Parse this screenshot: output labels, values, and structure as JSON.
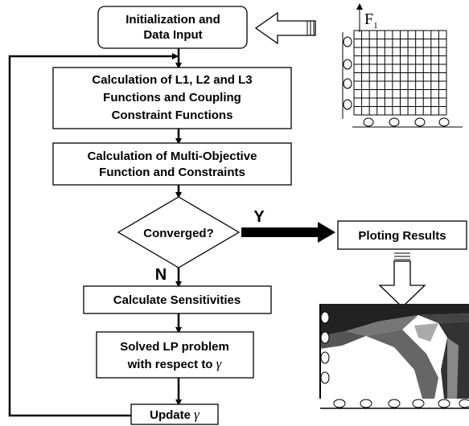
{
  "nodes": [
    {
      "lines": [
        "Initialization and",
        "Data Input"
      ]
    },
    {
      "lines": [
        "Calculation of L1, L2 and L3",
        "Functions and Coupling",
        "Constraint Functions"
      ]
    },
    {
      "lines": [
        "Calculation of Multi-Objective",
        "Function and Constraints"
      ]
    },
    {
      "lines": [
        "Converged?"
      ]
    },
    {
      "lines": [
        "Ploting Results"
      ]
    },
    {
      "lines": [
        "Calculate Sensitivities"
      ]
    },
    {
      "lines": [
        "Solved LP problem",
        "with respect to"
      ],
      "symbol": "γ"
    },
    {
      "lines": [
        "Update"
      ],
      "symbol": "γ"
    }
  ],
  "edges": {
    "yes": "Y",
    "no": "N"
  },
  "load": {
    "label": "F",
    "subscript": "1"
  }
}
